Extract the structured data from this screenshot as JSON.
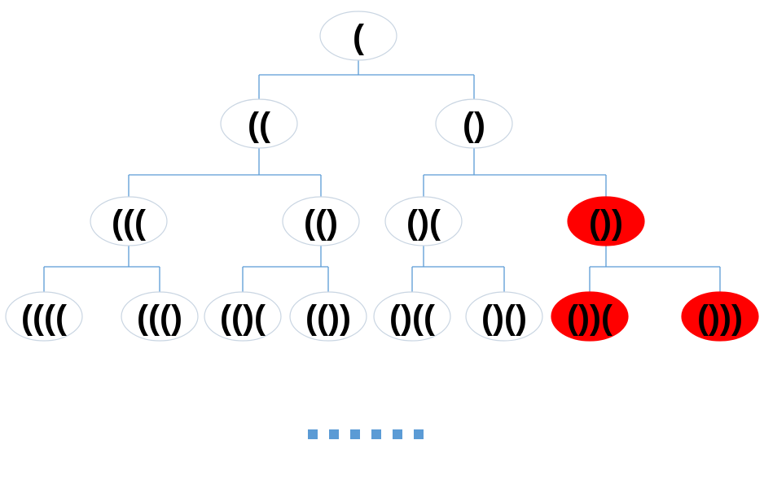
{
  "colors": {
    "connector": "#5b9bd5",
    "node_fill": "#ffffff",
    "node_border": "#c9d5e2",
    "highlight_fill": "#ff0000",
    "text": "#000000",
    "ellipsis": "#5b9bd5"
  },
  "tree": {
    "levels": [
      {
        "nodes": [
          {
            "label": "(",
            "highlighted": false
          }
        ]
      },
      {
        "nodes": [
          {
            "label": "((",
            "highlighted": false
          },
          {
            "label": "()",
            "highlighted": false
          }
        ]
      },
      {
        "nodes": [
          {
            "label": "(((",
            "highlighted": false
          },
          {
            "label": "(()",
            "highlighted": false
          },
          {
            "label": "()(",
            "highlighted": false
          },
          {
            "label": "())",
            "highlighted": true
          }
        ]
      },
      {
        "nodes": [
          {
            "label": "((((",
            "highlighted": false
          },
          {
            "label": "((()",
            "highlighted": false
          },
          {
            "label": "(()(",
            "highlighted": false
          },
          {
            "label": "(())",
            "highlighted": false
          },
          {
            "label": "()((",
            "highlighted": false
          },
          {
            "label": "()()",
            "highlighted": false
          },
          {
            "label": "())(",
            "highlighted": true
          },
          {
            "label": "()))",
            "highlighted": true
          }
        ]
      }
    ],
    "ellipsis_count": 6
  }
}
